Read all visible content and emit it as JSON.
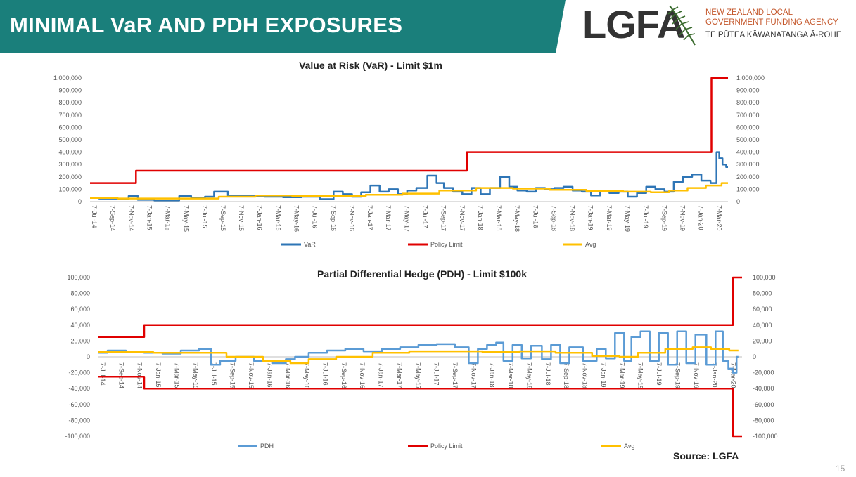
{
  "header": {
    "title": "MINIMAL VaR AND PDH EXPOSURES",
    "logo_text": "LGFA",
    "agency_line1": "NEW ZEALAND LOCAL",
    "agency_line2": "GOVERNMENT FUNDING AGENCY",
    "agency_line3": "TE PŪTEA KĀWANATANGA Ā-ROHE"
  },
  "source": "Source: LGFA",
  "page_number": "15",
  "colors": {
    "banner": "#1a7f7b",
    "series1": "#2e75b6",
    "series1_pdh": "#5b9bd5",
    "policy": "#e00000",
    "avg": "#ffc000",
    "agency": "#c4572b"
  },
  "icons": {
    "logo": "fern-icon"
  },
  "chart_data": [
    {
      "type": "line",
      "title": "Value at Risk (VaR) - Limit $1m",
      "x_tick_labels": [
        "7-Jul-14",
        "7-Sep-14",
        "7-Nov-14",
        "7-Jan-15",
        "7-Mar-15",
        "7-May-15",
        "7-Jul-15",
        "7-Sep-15",
        "7-Nov-15",
        "7-Jan-16",
        "7-Mar-16",
        "7-May-16",
        "7-Jul-16",
        "7-Sep-16",
        "7-Nov-16",
        "7-Jan-17",
        "7-Mar-17",
        "7-May-17",
        "7-Jul-17",
        "7-Sep-17",
        "7-Nov-17",
        "7-Jan-18",
        "7-Mar-18",
        "7-May-18",
        "7-Jul-18",
        "7-Sep-18",
        "7-Nov-18",
        "7-Jan-19",
        "7-Mar-19",
        "7-May-19",
        "7-Jul-19",
        "7-Sep-19",
        "7-Nov-19",
        "7-Jan-20",
        "7-Mar-20"
      ],
      "y_tick_labels": [
        "1,000,000",
        "900,000",
        "800,000",
        "700,000",
        "600,000",
        "500,000",
        "400,000",
        "300,000",
        "200,000",
        "100,000",
        "0"
      ],
      "ylim": [
        0,
        1000000
      ],
      "legend": [
        "VaR",
        "Policy Limit",
        "Avg"
      ],
      "legend_position": "bottom",
      "secondary_axis": true,
      "series": [
        {
          "name": "VaR",
          "color": "#2e75b6",
          "x": [
            0,
            1,
            2,
            2.2,
            3,
            4,
            4.7,
            5,
            6,
            6.5,
            7,
            8,
            9,
            10,
            11,
            12,
            13,
            13.5,
            14,
            14.5,
            15,
            15.5,
            16,
            16.5,
            17,
            17.5,
            18,
            18.7,
            19,
            19.5,
            20,
            20.5,
            21,
            21.5,
            22,
            22.6,
            23,
            23.5,
            24,
            24.5,
            25,
            25.5,
            26,
            26.5,
            27,
            27.5,
            28,
            28.5,
            29,
            29.5,
            30,
            30.5,
            31,
            31.5,
            32,
            32.5,
            33,
            33.5,
            34,
            34.15,
            34.3,
            34.5,
            34.7
          ],
          "y": [
            30000,
            25000,
            20000,
            45000,
            15000,
            10000,
            10000,
            45000,
            30000,
            40000,
            80000,
            50000,
            45000,
            40000,
            35000,
            40000,
            20000,
            80000,
            60000,
            40000,
            75000,
            130000,
            80000,
            100000,
            60000,
            90000,
            110000,
            210000,
            150000,
            110000,
            80000,
            60000,
            110000,
            60000,
            110000,
            200000,
            120000,
            90000,
            80000,
            110000,
            100000,
            110000,
            120000,
            90000,
            80000,
            50000,
            90000,
            70000,
            80000,
            40000,
            70000,
            120000,
            100000,
            80000,
            160000,
            200000,
            220000,
            170000,
            150000,
            400000,
            350000,
            300000,
            280000
          ]
        },
        {
          "name": "Policy Limit",
          "color": "#e00000",
          "step": true,
          "x": [
            0,
            2.5,
            2.5,
            20.5,
            20.5,
            33.8,
            33.8,
            34.7
          ],
          "y": [
            150000,
            150000,
            250000,
            250000,
            400000,
            400000,
            1000000,
            1000000
          ]
        },
        {
          "name": "Avg",
          "color": "#ffc000",
          "x": [
            0,
            3,
            6,
            8,
            10,
            12,
            14,
            16,
            18,
            20,
            22,
            24,
            26,
            28,
            30,
            31,
            32,
            33,
            34,
            34.7
          ],
          "y": [
            30000,
            25000,
            25000,
            40000,
            50000,
            45000,
            45000,
            55000,
            65000,
            90000,
            110000,
            105000,
            95000,
            85000,
            80000,
            75000,
            90000,
            110000,
            130000,
            150000
          ]
        }
      ]
    },
    {
      "type": "line",
      "title": "Partial Differential Hedge (PDH) - Limit $100k",
      "x_tick_labels": [
        "7-Jul-14",
        "7-Sep-14",
        "7-Nov-14",
        "7-Jan-15",
        "7-Mar-15",
        "7-May-15",
        "7-Jul-15",
        "7-Sep-15",
        "7-Nov-15",
        "7-Jan-16",
        "7-Mar-16",
        "7-May-16",
        "7-Jul-16",
        "7-Sep-16",
        "7-Nov-16",
        "7-Jan-17",
        "7-Mar-17",
        "7-May-17",
        "7-Jul-17",
        "7-Sep-17",
        "7-Nov-17",
        "7-Jan-18",
        "7-Mar-18",
        "7-May-18",
        "7-Jul-18",
        "7-Sep-18",
        "7-Nov-18",
        "7-Jan-19",
        "7-Mar-19",
        "7-May-19",
        "7-Jul-19",
        "7-Sep-19",
        "7-Nov-19",
        "7-Jan-20",
        "7-Mar-20"
      ],
      "y_tick_labels": [
        "100,000",
        "80,000",
        "60,000",
        "40,000",
        "20,000",
        "0",
        "-20,000",
        "-40,000",
        "-60,000",
        "-80,000",
        "-100,000"
      ],
      "ylim": [
        -100000,
        100000
      ],
      "legend": [
        "PDH",
        "Policy Limit",
        "Avg"
      ],
      "legend_position": "bottom",
      "secondary_axis": true,
      "series": [
        {
          "name": "PDH",
          "color": "#5b9bd5",
          "x": [
            0,
            1,
            2,
            3,
            4,
            5,
            6,
            6.3,
            7,
            8,
            9,
            10,
            10.5,
            11,
            12,
            13,
            14,
            15,
            16,
            17,
            18,
            19,
            20,
            20.5,
            21,
            21.5,
            22,
            22.3,
            23,
            23.3,
            24,
            24.5,
            25,
            25.5,
            26,
            27,
            27.5,
            28,
            28.5,
            29,
            29.3,
            30,
            30.3,
            31,
            31.3,
            32,
            32.3,
            33,
            33.5,
            34,
            34.3,
            34.6,
            34.8,
            35
          ],
          "y": [
            5000,
            8000,
            6000,
            5000,
            4000,
            8000,
            10000,
            -10000,
            -5000,
            0,
            -5000,
            -8000,
            -3000,
            0,
            5000,
            8000,
            10000,
            7000,
            10000,
            12000,
            15000,
            16000,
            12000,
            -8000,
            10000,
            15000,
            18000,
            -5000,
            15000,
            -2000,
            14000,
            -3000,
            15000,
            -8000,
            12000,
            -5000,
            10000,
            -2000,
            30000,
            -5000,
            25000,
            32000,
            -5000,
            30000,
            -10000,
            32000,
            -8000,
            28000,
            -10000,
            32000,
            -5000,
            -15000,
            -20000,
            0
          ]
        },
        {
          "name": "Policy Limit",
          "color": "#e00000",
          "step": true,
          "x": [
            0,
            2.5,
            2.5,
            34.7,
            34.7,
            35.2
          ],
          "y": [
            25000,
            25000,
            40000,
            40000,
            100000,
            100000
          ]
        },
        {
          "name": "Policy Limit",
          "color": "#e00000",
          "step": true,
          "hide_legend": true,
          "x": [
            0,
            2.5,
            2.5,
            34.7,
            34.7,
            35.2
          ],
          "y": [
            -25000,
            -25000,
            -40000,
            -40000,
            -100000,
            -100000
          ]
        },
        {
          "name": "Avg",
          "color": "#ffc000",
          "x": [
            0,
            2,
            4,
            6,
            8,
            10,
            11,
            12,
            14,
            16,
            18,
            20,
            22,
            24,
            26,
            28,
            29,
            30,
            32,
            33,
            34,
            35
          ],
          "y": [
            6000,
            6000,
            5000,
            5000,
            0,
            -5000,
            -8000,
            -3000,
            0,
            5000,
            7000,
            7000,
            6000,
            7000,
            5000,
            1000,
            0,
            5000,
            10000,
            12000,
            10000,
            8000
          ]
        }
      ]
    }
  ]
}
